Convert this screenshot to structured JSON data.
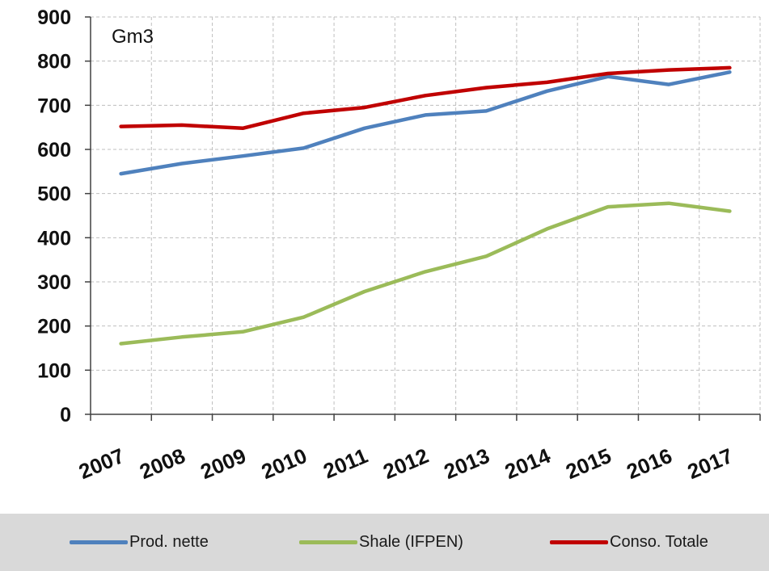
{
  "chart_data": {
    "type": "line",
    "unit_label": "Gm3",
    "categories": [
      "2007",
      "2008",
      "2009",
      "2010",
      "2011",
      "2012",
      "2013",
      "2014",
      "2015",
      "2016",
      "2017"
    ],
    "ylim": [
      0,
      900
    ],
    "yticks": [
      0,
      100,
      200,
      300,
      400,
      500,
      600,
      700,
      800,
      900
    ],
    "grid": true,
    "legend_position": "bottom",
    "series": [
      {
        "name": "Prod. nette",
        "color": "#4f81bd",
        "x": [
          2007.5,
          2008.5,
          2009.5,
          2010.5,
          2011.5,
          2012.5,
          2013.5,
          2014.5,
          2015.5,
          2016.5,
          2017.5
        ],
        "values": [
          545,
          568,
          585,
          603,
          648,
          678,
          687,
          732,
          765,
          747,
          775
        ]
      },
      {
        "name": "Shale (IFPEN)",
        "color": "#9bbb59",
        "x": [
          2007.5,
          2008.5,
          2009.5,
          2010.5,
          2011.5,
          2012.5,
          2013.5,
          2014.5,
          2015.5,
          2016.5,
          2017.5
        ],
        "values": [
          160,
          175,
          187,
          220,
          278,
          323,
          358,
          420,
          470,
          478,
          460
        ]
      },
      {
        "name": "Conso. Totale",
        "color": "#c00000",
        "x": [
          2007.5,
          2008.5,
          2009.5,
          2010.5,
          2011.5,
          2012.5,
          2013.5,
          2014.5,
          2015.5,
          2016.5,
          2017.5
        ],
        "values": [
          652,
          655,
          648,
          682,
          695,
          722,
          740,
          752,
          772,
          780,
          785
        ]
      }
    ]
  }
}
